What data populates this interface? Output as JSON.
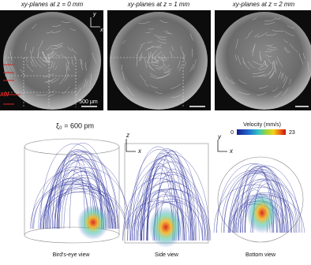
{
  "panels": [
    {
      "title": "xy-planes at z = 0 mm"
    },
    {
      "title": "xy-planes at z = 1 mm"
    },
    {
      "title": "xy-planes at z = 2 mm"
    }
  ],
  "panel_axes": {
    "vertical": "y",
    "horizontal": "x"
  },
  "scale_bar": "500 µm",
  "marker": "AW",
  "amplitude": "ξ₀ = 600 pm",
  "colorbar": {
    "title": "Velocity (mm/s)",
    "min": 0,
    "max": 23
  },
  "views": [
    {
      "label": "Bird's-eye view"
    },
    {
      "label": "Side view",
      "axes": {
        "vertical": "z",
        "horizontal": "x"
      }
    },
    {
      "label": "Bottom view",
      "axes": {
        "vertical": "y",
        "horizontal": "x"
      }
    }
  ]
}
